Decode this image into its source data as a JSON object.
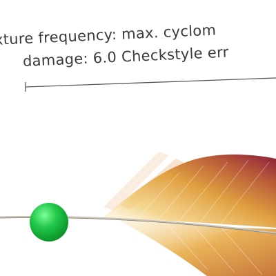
{
  "caption": {
    "line1": "xture frequency: max. cyclom",
    "line2": "damage: 6.0 Checkstyle err"
  },
  "colors": {
    "text": "#3a3a3a",
    "pin": "#1fbf45",
    "feather_dark": "#8b1e3a",
    "feather_light": "#e8b24a"
  },
  "icons": {
    "pin": "green-pin-head",
    "feather": "feather-illustration"
  }
}
